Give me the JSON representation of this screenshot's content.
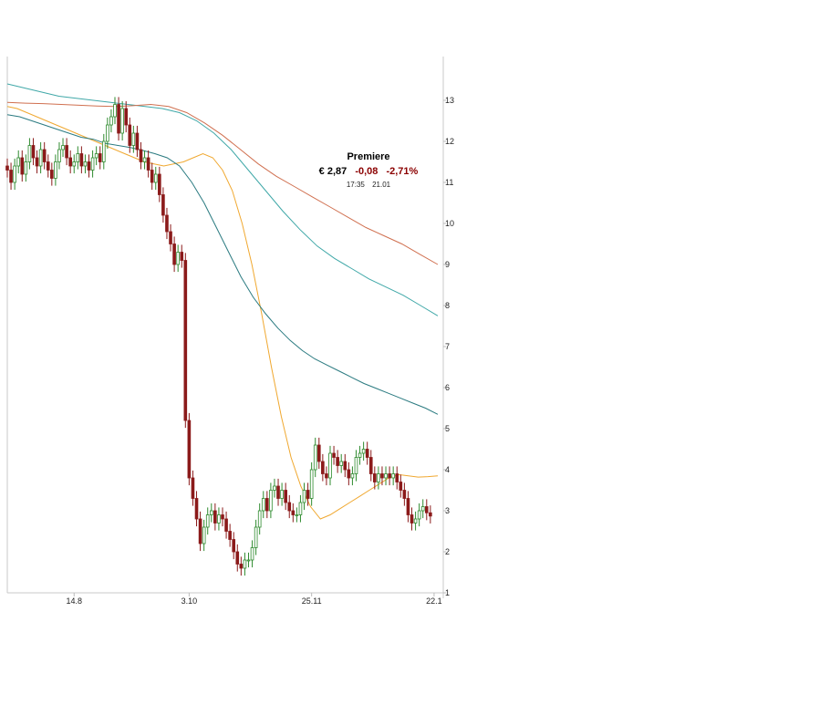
{
  "info": {
    "name": "Premiere",
    "price": "€ 2,87",
    "change": "-0,08",
    "change_pct": "-2,71%",
    "time": "17:35",
    "date": "21.01"
  },
  "chart_data": {
    "type": "candlestick",
    "title": "",
    "ylim": [
      1,
      13.5
    ],
    "y_ticks": [
      "1",
      "2",
      "3",
      "4",
      "5",
      "6",
      "7",
      "8",
      "9",
      "10",
      "11",
      "12",
      "13"
    ],
    "x_tick_labels": [
      "14.8",
      "3.10",
      "25.11",
      "22.1"
    ],
    "x_tick_index": [
      18,
      49,
      82,
      115
    ],
    "x_count": 117,
    "colors": {
      "up": "#2e8b2e",
      "down": "#8b1a1a",
      "ma1": "#f0a830",
      "ma2": "#2a7a80",
      "ma3": "#40a8a8",
      "ma4": "#d07050"
    },
    "close": [
      11.3,
      11.0,
      11.4,
      11.6,
      11.2,
      11.5,
      11.9,
      11.6,
      11.4,
      11.8,
      11.5,
      11.3,
      11.1,
      11.5,
      11.8,
      11.9,
      11.6,
      11.4,
      11.5,
      11.7,
      11.4,
      11.5,
      11.3,
      11.6,
      11.7,
      11.5,
      12.0,
      12.4,
      12.6,
      12.9,
      12.2,
      12.8,
      12.4,
      11.9,
      12.2,
      11.8,
      11.5,
      11.6,
      11.3,
      11.0,
      11.2,
      10.7,
      10.2,
      9.8,
      9.5,
      9.0,
      9.3,
      9.1,
      5.2,
      3.8,
      3.3,
      2.8,
      2.2,
      2.6,
      2.9,
      3.0,
      2.7,
      2.9,
      2.8,
      2.5,
      2.3,
      2.0,
      1.7,
      1.6,
      1.8,
      1.8,
      2.1,
      2.6,
      3.0,
      3.3,
      3.0,
      3.5,
      3.6,
      3.3,
      3.5,
      3.2,
      3.0,
      2.9,
      2.9,
      3.2,
      3.5,
      3.3,
      4.0,
      4.6,
      4.2,
      3.9,
      3.8,
      4.4,
      4.3,
      4.1,
      4.2,
      4.0,
      3.8,
      3.9,
      4.3,
      4.4,
      4.5,
      4.3,
      3.9,
      3.7,
      3.9,
      3.8,
      3.9,
      3.8,
      3.9,
      3.7,
      3.5,
      3.3,
      2.9,
      2.7,
      2.8,
      3.0,
      3.1,
      2.95,
      2.87
    ],
    "series": [
      {
        "name": "",
        "values": [
          12.85,
          12.8,
          12.7,
          12.6,
          12.5,
          12.4,
          12.3,
          12.2,
          12.1,
          12.0,
          11.9,
          11.8,
          11.7,
          11.6,
          11.5,
          11.45,
          11.4,
          11.45,
          11.5,
          11.6,
          11.7,
          11.6,
          11.3,
          10.8,
          10.0,
          9.0,
          7.8,
          6.5,
          5.3,
          4.3,
          3.6,
          3.1,
          2.8,
          2.9,
          3.05,
          3.2,
          3.35,
          3.5,
          3.65,
          3.8,
          3.88,
          3.85,
          3.82,
          3.83,
          3.85
        ]
      },
      {
        "name": "",
        "values": [
          12.65,
          12.6,
          12.5,
          12.4,
          12.3,
          12.2,
          12.1,
          12.05,
          11.95,
          11.9,
          11.85,
          11.78,
          11.7,
          11.6,
          11.4,
          11.0,
          10.5,
          9.9,
          9.3,
          8.7,
          8.2,
          7.8,
          7.45,
          7.15,
          6.9,
          6.7,
          6.55,
          6.4,
          6.25,
          6.1,
          5.98,
          5.86,
          5.74,
          5.62,
          5.5,
          5.35
        ]
      },
      {
        "name": "",
        "values": [
          13.4,
          13.3,
          13.2,
          13.1,
          13.05,
          13.0,
          12.95,
          12.9,
          12.85,
          12.8,
          12.7,
          12.5,
          12.2,
          11.8,
          11.3,
          10.8,
          10.3,
          9.85,
          9.45,
          9.15,
          8.9,
          8.65,
          8.45,
          8.25,
          8.0,
          7.75
        ]
      },
      {
        "name": "",
        "values": [
          12.95,
          12.93,
          12.92,
          12.9,
          12.88,
          12.86,
          12.85,
          12.87,
          12.9,
          12.85,
          12.7,
          12.45,
          12.15,
          11.8,
          11.45,
          11.15,
          10.9,
          10.65,
          10.4,
          10.15,
          9.9,
          9.7,
          9.5,
          9.25,
          9.0
        ]
      }
    ]
  }
}
